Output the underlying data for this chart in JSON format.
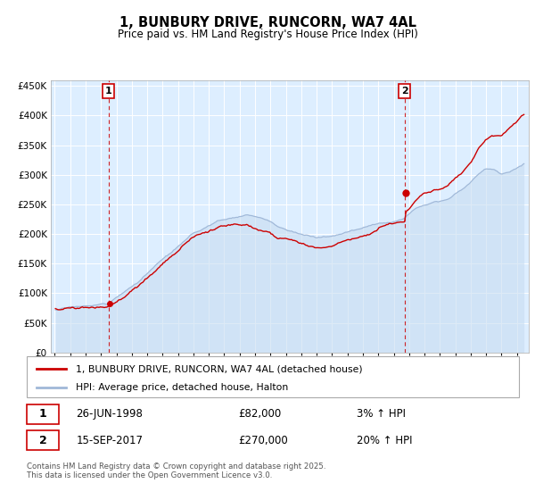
{
  "title": "1, BUNBURY DRIVE, RUNCORN, WA7 4AL",
  "subtitle": "Price paid vs. HM Land Registry's House Price Index (HPI)",
  "legend_property": "1, BUNBURY DRIVE, RUNCORN, WA7 4AL (detached house)",
  "legend_hpi": "HPI: Average price, detached house, Halton",
  "property_color": "#cc0000",
  "hpi_color": "#a0b8d8",
  "hpi_fill_color": "#c8ddf0",
  "background_color": "#ddeeff",
  "vline_color": "#cc0000",
  "ylim": [
    0,
    460000
  ],
  "yticks": [
    0,
    50000,
    100000,
    150000,
    200000,
    250000,
    300000,
    350000,
    400000,
    450000
  ],
  "copyright_text": "Contains HM Land Registry data © Crown copyright and database right 2025.\nThis data is licensed under the Open Government Licence v3.0.",
  "sale1_year": 1998.49,
  "sale2_year": 2017.71,
  "sale1_price": 82000,
  "sale2_price": 270000,
  "sale1_date": "26-JUN-1998",
  "sale1_price_str": "£82,000",
  "sale1_hpi": "3% ↑ HPI",
  "sale2_date": "15-SEP-2017",
  "sale2_price_str": "£270,000",
  "sale2_hpi": "20% ↑ HPI"
}
